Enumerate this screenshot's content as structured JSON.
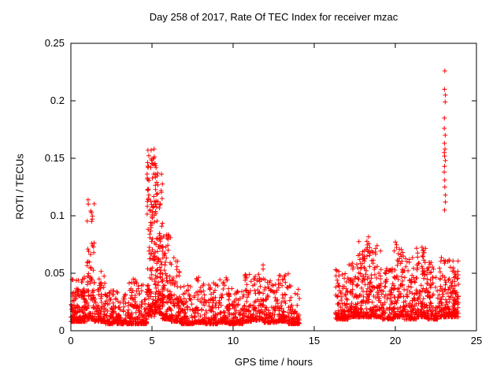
{
  "chart_data": {
    "type": "scatter",
    "title": "Day 258 of 2017, Rate Of TEC Index for receiver mzac",
    "xlabel": "GPS time / hours",
    "ylabel": "ROTI / TECUs",
    "xlim": [
      0,
      25
    ],
    "ylim": [
      0,
      0.25
    ],
    "xticks": [
      0,
      5,
      10,
      15,
      20,
      25
    ],
    "xtick_labels": [
      "0",
      "5",
      "10",
      "15",
      "20",
      "25"
    ],
    "yticks": [
      0,
      0.05,
      0.1,
      0.15,
      0.2,
      0.25
    ],
    "ytick_labels": [
      "0",
      "0.05",
      "0.1",
      "0.15",
      "0.2",
      "0.25"
    ],
    "grid": false,
    "legend": "none",
    "marker": "plus",
    "marker_color": "#ff0000",
    "axis_color": "#000000",
    "background_color": "#ffffff",
    "data_gap_hours": [
      14.1,
      16.3
    ],
    "segment_fields": [
      "t_start",
      "t_end",
      "n_points",
      "y_min",
      "y_max",
      "tail_exponent"
    ],
    "segments": [
      [
        0.0,
        0.6,
        110,
        0.008,
        0.045,
        3.0
      ],
      [
        0.6,
        1.0,
        70,
        0.008,
        0.05,
        3.5
      ],
      [
        1.0,
        1.45,
        80,
        0.01,
        0.115,
        2.2
      ],
      [
        1.45,
        2.1,
        90,
        0.008,
        0.055,
        3.0
      ],
      [
        2.1,
        3.4,
        150,
        0.006,
        0.035,
        3.0
      ],
      [
        3.4,
        4.1,
        90,
        0.006,
        0.045,
        3.0
      ],
      [
        4.1,
        4.7,
        80,
        0.006,
        0.04,
        3.0
      ],
      [
        4.7,
        5.15,
        130,
        0.012,
        0.16,
        1.6
      ],
      [
        5.15,
        5.65,
        130,
        0.015,
        0.15,
        1.8
      ],
      [
        5.65,
        6.15,
        100,
        0.01,
        0.085,
        2.2
      ],
      [
        6.15,
        6.7,
        80,
        0.008,
        0.065,
        2.5
      ],
      [
        6.7,
        7.6,
        100,
        0.006,
        0.04,
        3.0
      ],
      [
        7.6,
        8.3,
        80,
        0.007,
        0.048,
        3.0
      ],
      [
        8.3,
        9.1,
        90,
        0.006,
        0.042,
        3.0
      ],
      [
        9.1,
        9.7,
        70,
        0.007,
        0.05,
        3.0
      ],
      [
        9.7,
        10.6,
        100,
        0.006,
        0.04,
        3.0
      ],
      [
        10.6,
        11.3,
        80,
        0.008,
        0.052,
        2.8
      ],
      [
        11.3,
        11.9,
        70,
        0.009,
        0.058,
        2.6
      ],
      [
        11.9,
        12.7,
        90,
        0.007,
        0.045,
        3.0
      ],
      [
        12.7,
        13.4,
        80,
        0.008,
        0.05,
        3.0
      ],
      [
        13.4,
        14.1,
        80,
        0.006,
        0.04,
        3.0
      ],
      [
        16.3,
        17.1,
        110,
        0.01,
        0.055,
        2.8
      ],
      [
        17.1,
        17.7,
        90,
        0.012,
        0.06,
        2.5
      ],
      [
        17.7,
        18.4,
        110,
        0.012,
        0.082,
        2.2
      ],
      [
        18.4,
        19.1,
        100,
        0.012,
        0.075,
        2.3
      ],
      [
        19.1,
        19.9,
        100,
        0.01,
        0.055,
        2.6
      ],
      [
        19.9,
        20.5,
        90,
        0.012,
        0.08,
        2.2
      ],
      [
        20.5,
        21.3,
        100,
        0.01,
        0.065,
        2.5
      ],
      [
        21.3,
        21.9,
        90,
        0.012,
        0.075,
        2.3
      ],
      [
        21.9,
        22.7,
        100,
        0.01,
        0.06,
        2.5
      ],
      [
        22.7,
        23.3,
        90,
        0.012,
        0.065,
        2.4
      ],
      [
        23.3,
        23.9,
        110,
        0.012,
        0.062,
        2.2
      ]
    ],
    "spike_columns": [
      {
        "t": 23.05,
        "ys": [
          0.105,
          0.112,
          0.118,
          0.125,
          0.131,
          0.138,
          0.143,
          0.148,
          0.152,
          0.155,
          0.158,
          0.163,
          0.17,
          0.176,
          0.185,
          0.199,
          0.205,
          0.21,
          0.226
        ]
      }
    ]
  }
}
